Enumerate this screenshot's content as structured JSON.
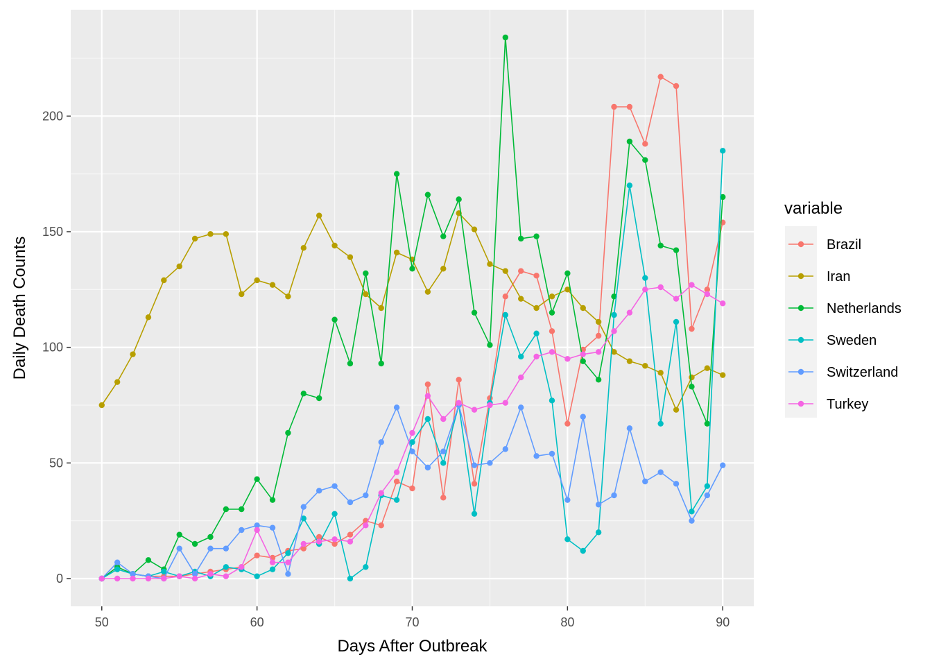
{
  "chart_data": {
    "type": "line",
    "xlabel": "Days After Outbreak",
    "ylabel": "Daily Death Counts",
    "xlim": [
      48,
      92
    ],
    "ylim": [
      -12,
      246
    ],
    "x_ticks": [
      50,
      60,
      70,
      80,
      90
    ],
    "y_ticks": [
      0,
      50,
      100,
      150,
      200
    ],
    "grid": true,
    "legend": {
      "title": "variable",
      "position": "right"
    },
    "x": [
      50,
      51,
      52,
      53,
      54,
      55,
      56,
      57,
      58,
      59,
      60,
      61,
      62,
      63,
      64,
      65,
      66,
      67,
      68,
      69,
      70,
      71,
      72,
      73,
      74,
      75,
      76,
      77,
      78,
      79,
      80,
      81,
      82,
      83,
      84,
      85,
      86,
      87,
      88,
      89,
      90
    ],
    "series": [
      {
        "name": "Brazil",
        "color": "#F8766D",
        "values": [
          0,
          5,
          2,
          1,
          1,
          1,
          2,
          3,
          4,
          5,
          10,
          9,
          12,
          13,
          18,
          15,
          19,
          25,
          23,
          42,
          39,
          84,
          35,
          86,
          41,
          78,
          122,
          133,
          131,
          107,
          67,
          99,
          105,
          204,
          204,
          188,
          217,
          213,
          108,
          125,
          154
        ]
      },
      {
        "name": "Iran",
        "color": "#B79F00",
        "values": [
          75,
          85,
          97,
          113,
          129,
          135,
          147,
          149,
          149,
          123,
          129,
          127,
          122,
          143,
          157,
          144,
          139,
          123,
          117,
          141,
          138,
          124,
          134,
          158,
          151,
          136,
          133,
          121,
          117,
          122,
          125,
          117,
          111,
          98,
          94,
          92,
          89,
          73,
          87,
          91,
          88
        ]
      },
      {
        "name": "Netherlands",
        "color": "#00BA38",
        "values": [
          0,
          5,
          2,
          8,
          4,
          19,
          15,
          18,
          30,
          30,
          43,
          34,
          63,
          80,
          78,
          112,
          93,
          132,
          93,
          175,
          134,
          166,
          148,
          164,
          115,
          101,
          234,
          147,
          148,
          115,
          132,
          94,
          86,
          122,
          189,
          181,
          144,
          142,
          83,
          67,
          165
        ]
      },
      {
        "name": "Sweden",
        "color": "#00BFC4",
        "values": [
          0,
          4,
          2,
          1,
          3,
          1,
          3,
          1,
          5,
          4,
          1,
          4,
          11,
          26,
          15,
          28,
          0,
          5,
          36,
          34,
          59,
          69,
          50,
          75,
          28,
          76,
          114,
          96,
          106,
          77,
          17,
          12,
          20,
          114,
          170,
          130,
          67,
          111,
          29,
          40,
          185
        ]
      },
      {
        "name": "Switzerland",
        "color": "#619CFF",
        "values": [
          0,
          7,
          2,
          1,
          0,
          13,
          2,
          13,
          13,
          21,
          23,
          22,
          2,
          31,
          38,
          40,
          33,
          36,
          59,
          74,
          55,
          48,
          55,
          75,
          49,
          50,
          56,
          74,
          53,
          54,
          34,
          70,
          32,
          36,
          65,
          42,
          46,
          41,
          25,
          36,
          49
        ]
      },
      {
        "name": "Turkey",
        "color": "#F564E3",
        "values": [
          0,
          0,
          0,
          0,
          0,
          1,
          0,
          2,
          1,
          5,
          21,
          7,
          7,
          15,
          16,
          17,
          16,
          23,
          37,
          46,
          63,
          79,
          69,
          76,
          73,
          75,
          76,
          87,
          96,
          98,
          95,
          97,
          98,
          107,
          115,
          125,
          126,
          121,
          127,
          123,
          119
        ]
      }
    ]
  }
}
